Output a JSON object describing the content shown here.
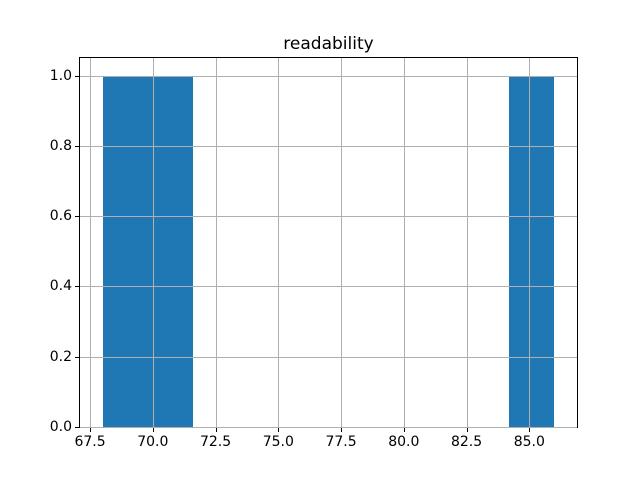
{
  "figure": {
    "background": "#ffffff"
  },
  "chart_data": {
    "type": "bar",
    "subtype": "histogram",
    "title": "readability",
    "xlabel": "",
    "ylabel": "",
    "xlim": [
      67.1,
      86.9
    ],
    "ylim": [
      0,
      1.05
    ],
    "grid": true,
    "grid_over_bars": true,
    "legend": null,
    "bar_color": "#1f77b4",
    "grid_color": "#b0b0b0",
    "spine_color": "#000000",
    "bars": [
      {
        "x_start": 68.0,
        "x_end": 69.8,
        "height": 1.0
      },
      {
        "x_start": 69.8,
        "x_end": 71.6,
        "height": 1.0
      },
      {
        "x_start": 84.2,
        "x_end": 86.0,
        "height": 1.0
      }
    ],
    "x_ticks": {
      "values": [
        67.5,
        70.0,
        72.5,
        75.0,
        77.5,
        80.0,
        82.5,
        85.0
      ],
      "labels": [
        "67.5",
        "70.0",
        "72.5",
        "75.0",
        "77.5",
        "80.0",
        "82.5",
        "85.0"
      ]
    },
    "y_ticks": {
      "values": [
        0.0,
        0.2,
        0.4,
        0.6,
        0.8,
        1.0
      ],
      "labels": [
        "0.0",
        "0.2",
        "0.4",
        "0.6",
        "0.8",
        "1.0"
      ]
    }
  }
}
